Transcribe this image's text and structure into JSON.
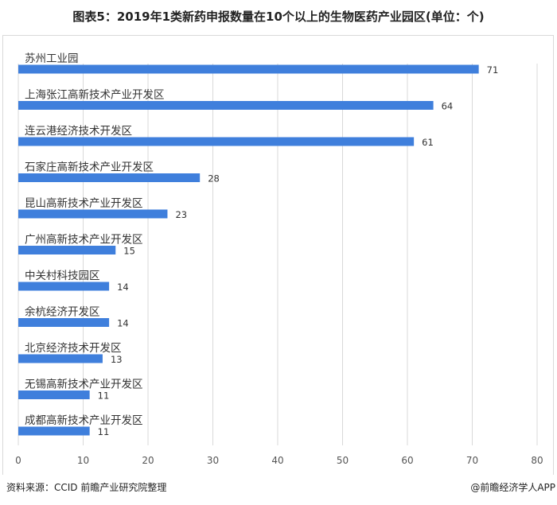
{
  "chart_data": {
    "type": "bar",
    "orientation": "horizontal",
    "title": "图表5：2019年1类新药申报数量在10个以上的生物医药产业园区(单位：个)",
    "categories": [
      "苏州工业园",
      "上海张江高新技术产业开发区",
      "连云港经济技术开发区",
      "石家庄高新技术产业开发区",
      "昆山高新技术产业开发区",
      "广州高新技术产业开发区",
      "中关村科技园区",
      "余杭经济开发区",
      "北京经济技术开发区",
      "无锡高新技术产业开发区",
      "成都高新技术产业开发区"
    ],
    "values": [
      71,
      64,
      61,
      28,
      23,
      15,
      14,
      14,
      13,
      11,
      11
    ],
    "xlim": [
      0,
      80
    ],
    "xticks": [
      0,
      10,
      20,
      30,
      40,
      50,
      60,
      70,
      80
    ],
    "grid": true,
    "bar_color": "#3f7fdc"
  },
  "footer": {
    "source": "资料来源：CCID 前瞻产业研究院整理",
    "credit": "@前瞻经济学人APP"
  }
}
